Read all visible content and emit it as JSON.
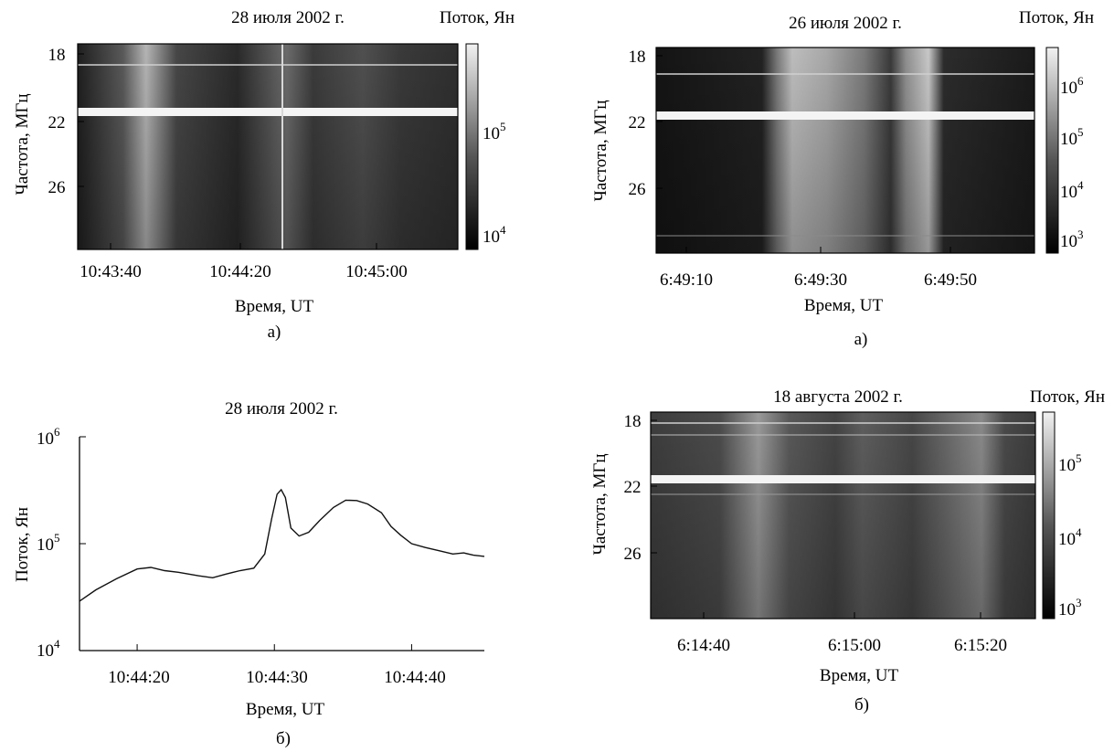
{
  "colors": {
    "axis": "#000000",
    "background": "#ffffff",
    "line": "#111111"
  },
  "chart_data": [
    {
      "id": "spec1",
      "type": "heatmap",
      "title": "28 июля 2002 г.",
      "colorbar_label": "Поток, Ян",
      "xlabel": "Время, UT",
      "ylabel": "Частота, МГц",
      "caption": "а)",
      "x_ticks": [
        "10:43:40",
        "10:44:20",
        "10:45:00"
      ],
      "y_ticks": [
        "18",
        "22",
        "26"
      ],
      "y_range": [
        18,
        29.5
      ],
      "colorbar_ticks": [
        {
          "base": "10",
          "exp": "5"
        },
        {
          "base": "10",
          "exp": "4"
        }
      ],
      "colorbar_scale": "log"
    },
    {
      "id": "spec2",
      "type": "heatmap",
      "title": "26 июля 2002 г.",
      "colorbar_label": "Поток, Ян",
      "xlabel": "Время, UT",
      "ylabel": "Частота, МГц",
      "caption": "а)",
      "x_ticks": [
        "6:49:10",
        "6:49:30",
        "6:49:50"
      ],
      "y_ticks": [
        "18",
        "22",
        "26"
      ],
      "y_range": [
        18,
        29.5
      ],
      "colorbar_ticks": [
        {
          "base": "10",
          "exp": "6"
        },
        {
          "base": "10",
          "exp": "5"
        },
        {
          "base": "10",
          "exp": "4"
        },
        {
          "base": "10",
          "exp": "3"
        }
      ],
      "colorbar_scale": "log"
    },
    {
      "id": "line1",
      "type": "line",
      "title": "28 июля 2002 г.",
      "xlabel": "Время, UT",
      "ylabel": "Поток, Ян",
      "caption": "б)",
      "x_ticks": [
        "10:44:20",
        "10:44:30",
        "10:44:40"
      ],
      "y_ticks": [
        {
          "base": "10",
          "exp": "6"
        },
        {
          "base": "10",
          "exp": "5"
        },
        {
          "base": "10",
          "exp": "4"
        }
      ],
      "y_scale": "log",
      "ylim": [
        10000,
        1000000
      ],
      "xlim_seconds": [
        15.8,
        45.3
      ],
      "x_seconds": [
        15.8,
        17,
        18.5,
        20,
        21,
        22,
        23,
        24.5,
        25.5,
        26.5,
        27.5,
        28.5,
        29.3,
        29.8,
        30.2,
        30.5,
        30.8,
        31.2,
        31.8,
        32.5,
        33.3,
        34.3,
        35.2,
        36,
        36.8,
        37.8,
        38.5,
        39.2,
        40,
        41,
        42,
        43,
        43.8,
        44.5,
        45.3
      ],
      "y": [
        29000,
        37000,
        47000,
        58000,
        60000,
        56000,
        54000,
        50000,
        48000,
        52000,
        56000,
        59000,
        80000,
        170000,
        290000,
        320000,
        270000,
        140000,
        118000,
        128000,
        165000,
        218000,
        255000,
        253000,
        235000,
        195000,
        145000,
        120000,
        100000,
        92000,
        86000,
        80000,
        82000,
        78000,
        76000
      ]
    },
    {
      "id": "spec3",
      "type": "heatmap",
      "title": "18 августа  2002 г.",
      "colorbar_label": "Поток, Ян",
      "xlabel": "Время, UT",
      "ylabel": "Частота, МГц",
      "caption": "б)",
      "x_ticks": [
        "6:14:40",
        "6:15:00",
        "6:15:20"
      ],
      "y_ticks": [
        "18",
        "22",
        "26"
      ],
      "y_range": [
        18,
        29.5
      ],
      "colorbar_ticks": [
        {
          "base": "10",
          "exp": "5"
        },
        {
          "base": "10",
          "exp": "4"
        },
        {
          "base": "10",
          "exp": "3"
        }
      ],
      "colorbar_scale": "log"
    }
  ]
}
